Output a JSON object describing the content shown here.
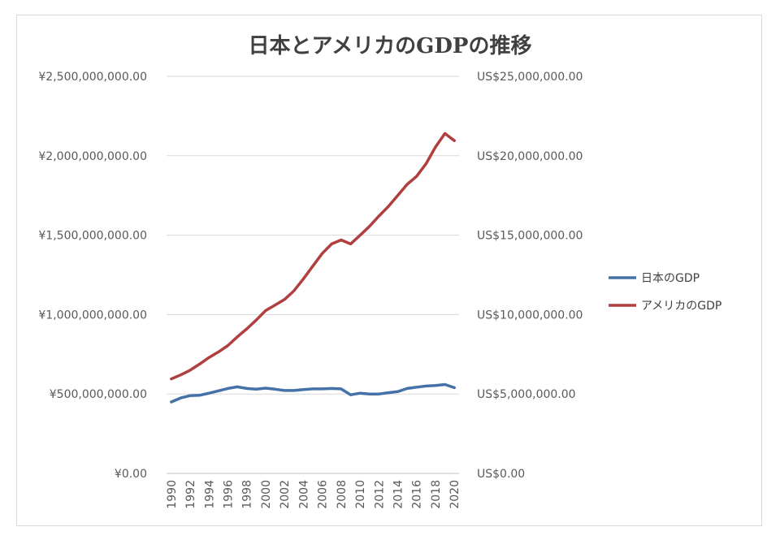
{
  "chart_data": {
    "type": "line",
    "title": "日本とアメリカのGDPの推移",
    "categories": [
      "1990",
      "1991",
      "1992",
      "1993",
      "1994",
      "1995",
      "1996",
      "1997",
      "1998",
      "1999",
      "2000",
      "2001",
      "2002",
      "2003",
      "2004",
      "2005",
      "2006",
      "2007",
      "2008",
      "2009",
      "2010",
      "2011",
      "2012",
      "2013",
      "2014",
      "2015",
      "2016",
      "2017",
      "2018",
      "2019",
      "2020"
    ],
    "x_tick_labels": [
      "1990",
      "1992",
      "1994",
      "1996",
      "1998",
      "2000",
      "2002",
      "2004",
      "2006",
      "2008",
      "2010",
      "2012",
      "2014",
      "2016",
      "2018",
      "2020"
    ],
    "y_left": {
      "ylim": [
        0,
        2500000000
      ],
      "tick_labels": [
        "¥0.00",
        "¥500,000,000.00",
        "¥1,000,000,000.00",
        "¥1,500,000,000.00",
        "¥2,000,000,000.00",
        "¥2,500,000,000.00"
      ]
    },
    "y_right": {
      "ylim": [
        0,
        25000000
      ],
      "tick_labels": [
        "US$0.00",
        "US$5,000,000.00",
        "US$10,000,000.00",
        "US$15,000,000.00",
        "US$20,000,000.00",
        "US$25,000,000.00"
      ]
    },
    "series": [
      {
        "name": "日本のGDP",
        "axis": "left",
        "color": "#4472a8",
        "values": [
          450000000,
          475000000,
          490000000,
          492000000,
          505000000,
          520000000,
          535000000,
          545000000,
          535000000,
          530000000,
          537000000,
          530000000,
          522000000,
          522000000,
          528000000,
          532000000,
          532000000,
          535000000,
          532000000,
          495000000,
          505000000,
          500000000,
          500000000,
          508000000,
          515000000,
          535000000,
          543000000,
          550000000,
          553000000,
          560000000,
          540000000
        ]
      },
      {
        "name": "アメリカのGDP",
        "axis": "right",
        "color": "#b04040",
        "values": [
          5950000,
          6200000,
          6500000,
          6880000,
          7300000,
          7650000,
          8050000,
          8600000,
          9100000,
          9650000,
          10250000,
          10600000,
          10950000,
          11500000,
          12250000,
          13050000,
          13850000,
          14450000,
          14700000,
          14450000,
          14990000,
          15550000,
          16200000,
          16800000,
          17500000,
          18200000,
          18700000,
          19500000,
          20550000,
          21400000,
          20950000
        ]
      }
    ],
    "legend_position": "right",
    "grid": true
  }
}
